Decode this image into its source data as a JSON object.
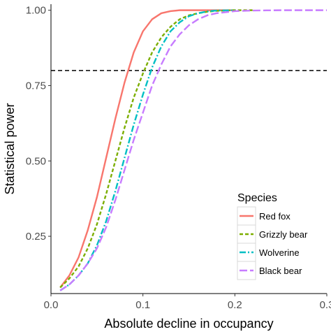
{
  "chart_data": {
    "type": "line",
    "xlabel": "Absolute decline in occupancy",
    "ylabel": "Statistical power",
    "xlim": [
      0.0,
      0.3
    ],
    "ylim": [
      0.06,
      1.02
    ],
    "x_ticks": [
      0.0,
      0.1,
      0.2,
      0.3
    ],
    "x_tick_labels": [
      "0.0",
      "0.1",
      "0.2",
      "0.3"
    ],
    "y_ticks": [
      0.25,
      0.5,
      0.75,
      1.0
    ],
    "y_tick_labels": [
      "0.25",
      "0.50",
      "0.75",
      "1.00"
    ],
    "grid": false,
    "reference_line": {
      "y": 0.8,
      "style": "dashed",
      "color": "#000000"
    },
    "legend": {
      "title": "Species",
      "placement": "bottom-right"
    },
    "series": [
      {
        "name": "Red fox",
        "color": "#F8766D",
        "dash": "solid",
        "x": [
          0.01,
          0.02,
          0.03,
          0.04,
          0.05,
          0.06,
          0.07,
          0.08,
          0.09,
          0.1,
          0.11,
          0.12,
          0.13,
          0.14,
          0.15,
          0.16,
          0.18,
          0.2
        ],
        "y": [
          0.08,
          0.12,
          0.18,
          0.27,
          0.38,
          0.51,
          0.64,
          0.76,
          0.86,
          0.93,
          0.97,
          0.99,
          0.997,
          1.0,
          1.0,
          1.0,
          1.0,
          1.0
        ]
      },
      {
        "name": "Grizzly bear",
        "color": "#7CAE00",
        "dash": "short-dash",
        "x": [
          0.01,
          0.02,
          0.03,
          0.04,
          0.05,
          0.06,
          0.07,
          0.08,
          0.09,
          0.1,
          0.11,
          0.12,
          0.13,
          0.14,
          0.15,
          0.16,
          0.17,
          0.18,
          0.2,
          0.22
        ],
        "y": [
          0.08,
          0.11,
          0.15,
          0.21,
          0.29,
          0.39,
          0.5,
          0.61,
          0.71,
          0.79,
          0.86,
          0.91,
          0.945,
          0.97,
          0.983,
          0.99,
          0.995,
          0.998,
          1.0,
          1.0
        ]
      },
      {
        "name": "Wolverine",
        "color": "#00BFC4",
        "dash": "dash-dot",
        "x": [
          0.01,
          0.02,
          0.03,
          0.04,
          0.05,
          0.06,
          0.07,
          0.08,
          0.09,
          0.1,
          0.11,
          0.12,
          0.13,
          0.14,
          0.15,
          0.16,
          0.17,
          0.18,
          0.2
        ],
        "y": [
          0.07,
          0.09,
          0.12,
          0.16,
          0.22,
          0.3,
          0.4,
          0.51,
          0.62,
          0.72,
          0.81,
          0.88,
          0.93,
          0.96,
          0.98,
          0.99,
          0.996,
          0.999,
          1.0
        ]
      },
      {
        "name": "Black bear",
        "color": "#C77CFF",
        "dash": "long-dash",
        "x": [
          0.01,
          0.02,
          0.03,
          0.04,
          0.05,
          0.06,
          0.07,
          0.08,
          0.09,
          0.1,
          0.11,
          0.12,
          0.13,
          0.14,
          0.15,
          0.16,
          0.17,
          0.18,
          0.2,
          0.22,
          0.25,
          0.3
        ],
        "y": [
          0.07,
          0.09,
          0.12,
          0.16,
          0.21,
          0.28,
          0.37,
          0.47,
          0.57,
          0.66,
          0.75,
          0.82,
          0.88,
          0.92,
          0.95,
          0.97,
          0.983,
          0.99,
          0.997,
          0.999,
          1.0,
          1.0
        ]
      }
    ]
  }
}
